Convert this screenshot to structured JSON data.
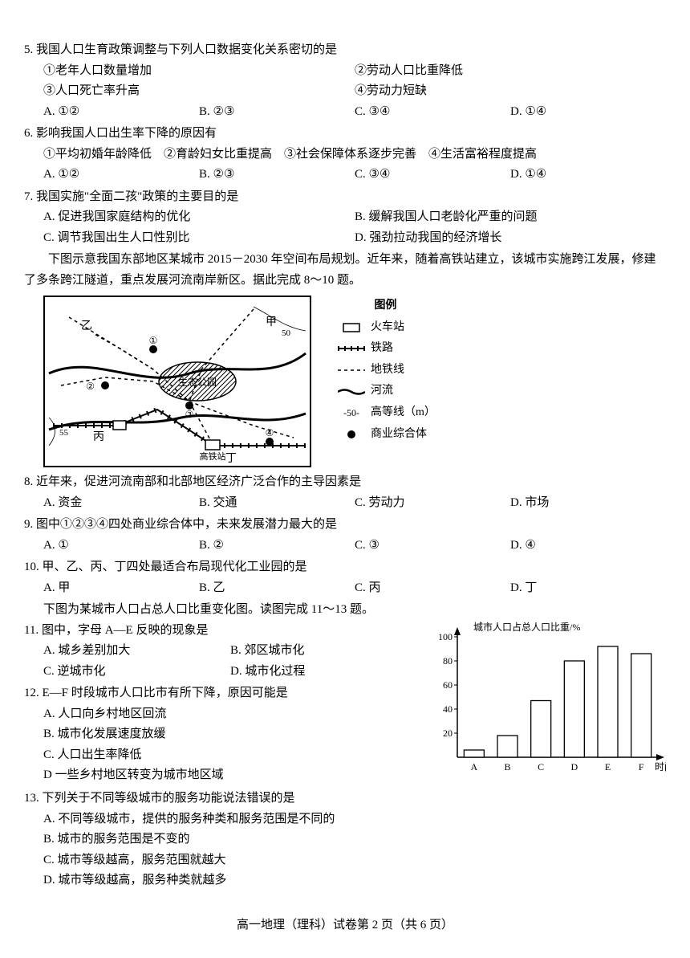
{
  "q5": {
    "stem": "5. 我国人口生育政策调整与下列人口数据变化关系密切的是",
    "subs": [
      "①老年人口数量增加",
      "②劳动人口比重降低",
      "③人口死亡率升高",
      "④劳动力短缺"
    ],
    "choices": [
      "A. ①②",
      "B. ②③",
      "C. ③④",
      "D. ①④"
    ]
  },
  "q6": {
    "stem": "6. 影响我国人口出生率下降的原因有",
    "line1": "①平均初婚年龄降低　②育龄妇女比重提高　③社会保障体系逐步完善　④生活富裕程度提高",
    "choices": [
      "A. ①②",
      "B. ②③",
      "C. ③④",
      "D. ①④"
    ]
  },
  "q7": {
    "stem": "7. 我国实施\"全面二孩\"政策的主要目的是",
    "choices": [
      "A. 促进我国家庭结构的优化",
      "B. 缓解我国人口老龄化严重的问题",
      "C. 调节我国出生人口性别比",
      "D. 强劲拉动我国的经济增长"
    ]
  },
  "passage1": "下图示意我国东部地区某城市 2015－2030 年空间布局规划。近年来，随着高铁站建立，该城市实施跨江发展，修建了多条跨江隧道，重点发展河流南岸新区。据此完成 8～10 题。",
  "map": {
    "labels": {
      "yi": "乙",
      "jia": "甲",
      "bing": "丙",
      "ding": "丁",
      "park": "生态公园",
      "gaotie": "高铁站"
    },
    "contours": [
      "50",
      "55",
      "-50-"
    ],
    "nums": [
      "①",
      "②",
      "③",
      "④"
    ],
    "legend_title": "图例",
    "legend": [
      {
        "key": "train_station",
        "label": "火车站"
      },
      {
        "key": "railway",
        "label": "铁路"
      },
      {
        "key": "metro",
        "label": "地铁线"
      },
      {
        "key": "river",
        "label": "河流"
      },
      {
        "key": "contour",
        "label": "高等线（m）",
        "prefix": "-50-"
      },
      {
        "key": "mall",
        "label": "商业综合体"
      }
    ],
    "colors": {
      "stroke": "#000000",
      "fill_bg": "#ffffff",
      "hatch": "#000000"
    }
  },
  "q8": {
    "stem": "8. 近年来，促进河流南部和北部地区经济广泛合作的主导因素是",
    "choices": [
      "A. 资金",
      "B. 交通",
      "C. 劳动力",
      "D. 市场"
    ]
  },
  "q9": {
    "stem": "9. 图中①②③④四处商业综合体中，未来发展潜力最大的是",
    "choices": [
      "A. ①",
      "B. ②",
      "C. ③",
      "D. ④"
    ]
  },
  "q10": {
    "stem": "10. 甲、乙、丙、丁四处最适合布局现代化工业园的是",
    "choices": [
      "A. 甲",
      "B. 乙",
      "C. 丙",
      "D. 丁"
    ]
  },
  "passage2": "下图为某城市人口占总人口比重变化图。读图完成 11～13 题。",
  "q11": {
    "stem": "11. 图中，字母 A—E 反映的现象是",
    "choices": [
      "A. 城乡差别加大",
      "B. 郊区城市化",
      "C. 逆城市化",
      "D. 城市化过程"
    ]
  },
  "q12": {
    "stem": "12. E—F 时段城市人口比市有所下降，原因可能是",
    "choices": [
      "A. 人口向乡村地区回流",
      "B. 城市化发展速度放缓",
      "C. 人口出生率降低",
      "D 一些乡村地区转变为城市地区域"
    ]
  },
  "q13": {
    "stem": "13. 下列关于不同等级城市的服务功能说法错误的是",
    "choices": [
      "A. 不同等级城市，提供的服务种类和服务范围是不同的",
      "B. 城市的服务范围是不变的",
      "C. 城市等级越高，服务范围就越大",
      "D. 城市等级越高，服务种类就越多"
    ]
  },
  "chart": {
    "title": "城市人口占总人口比重/%",
    "xlabel": "时间",
    "categories": [
      "A",
      "B",
      "C",
      "D",
      "E",
      "F"
    ],
    "values": [
      6,
      18,
      47,
      80,
      92,
      86
    ],
    "ylim": [
      0,
      100
    ],
    "ytick_step": 20,
    "bar_color": "#ffffff",
    "bar_stroke": "#000000",
    "axis_color": "#000000",
    "bar_width": 0.6,
    "font_size": 12
  },
  "footer": "高一地理（理科）试卷第 2 页（共 6 页）"
}
